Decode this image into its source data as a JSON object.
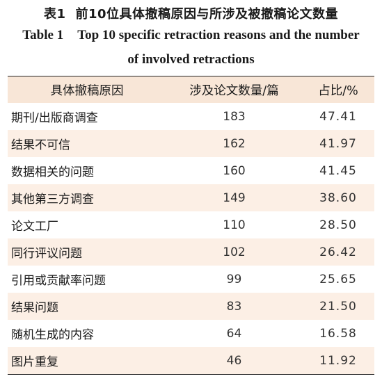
{
  "caption": {
    "zh_label": "表1",
    "zh_title": "前10位具体撤稿原因与所涉及被撤稿论文数量",
    "en_label": "Table 1",
    "en_title_line1": "Top 10 specific retraction reasons and the number",
    "en_title_line2": "of involved retractions"
  },
  "table": {
    "headers": [
      "具体撤稿原因",
      "涉及论文数量/篇",
      "占比/%"
    ],
    "rows": [
      [
        "期刊/出版商调查",
        "183",
        "47.41"
      ],
      [
        "结果不可信",
        "162",
        "41.97"
      ],
      [
        "数据相关的问题",
        "160",
        "41.45"
      ],
      [
        "其他第三方调查",
        "149",
        "38.60"
      ],
      [
        "论文工厂",
        "110",
        "28.50"
      ],
      [
        "同行评议问题",
        "102",
        "26.42"
      ],
      [
        "引用或贡献率问题",
        "99",
        "25.65"
      ],
      [
        "结果问题",
        "83",
        "21.50"
      ],
      [
        "随机生成的内容",
        "64",
        "16.58"
      ],
      [
        "图片重复",
        "46",
        "11.92"
      ]
    ]
  }
}
